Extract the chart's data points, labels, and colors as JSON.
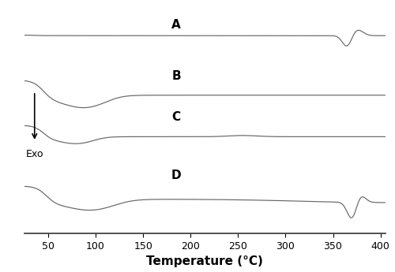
{
  "xlabel": "Temperature (°C)",
  "xmin": 25,
  "xmax": 405,
  "background_color": "#ffffff",
  "line_color": "#666666",
  "labels": [
    "A",
    "B",
    "C",
    "D"
  ],
  "exo_arrow": true
}
